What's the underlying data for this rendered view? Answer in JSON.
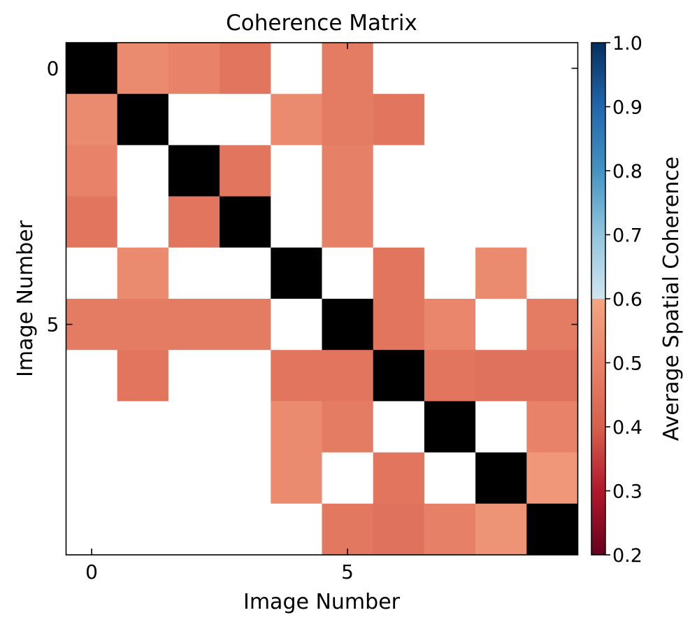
{
  "chart_data": {
    "type": "heatmap",
    "title": "Coherence Matrix",
    "xlabel": "Image Number",
    "ylabel": "Image Number",
    "x_ticks": [
      0,
      5
    ],
    "y_ticks": [
      0,
      5
    ],
    "colorbar": {
      "label": "Average Spatial Coherence",
      "min": 0.2,
      "max": 1.0,
      "ticks": [
        "0.2",
        "0.3",
        "0.4",
        "0.5",
        "0.6",
        "0.7",
        "0.8",
        "0.9",
        "1.0"
      ],
      "colormap": "RdBu",
      "colors": {
        "low": "#67001f",
        "mid_red": "#d6604d",
        "pale": "#f4a582",
        "pale_blue": "#d1e5f0",
        "mid_blue": "#4393c3",
        "high": "#053061"
      }
    },
    "diagonal_color": "#000000",
    "missing_color": "#ffffff",
    "matrix": [
      [
        null,
        0.62,
        0.6,
        0.56,
        null,
        0.58,
        null,
        null,
        null,
        null
      ],
      [
        0.62,
        null,
        null,
        null,
        0.62,
        0.58,
        0.56,
        null,
        null,
        null
      ],
      [
        0.6,
        null,
        null,
        0.56,
        null,
        0.59,
        null,
        null,
        null,
        null
      ],
      [
        0.56,
        null,
        0.56,
        null,
        null,
        0.59,
        null,
        null,
        null,
        null
      ],
      [
        null,
        0.62,
        null,
        null,
        null,
        null,
        0.56,
        null,
        0.62,
        null
      ],
      [
        0.58,
        0.58,
        0.58,
        0.58,
        null,
        null,
        0.56,
        0.61,
        null,
        0.58
      ],
      [
        null,
        0.56,
        null,
        null,
        0.56,
        0.56,
        null,
        0.56,
        0.55,
        0.55
      ],
      [
        null,
        null,
        null,
        null,
        0.62,
        0.58,
        null,
        null,
        null,
        0.6
      ],
      [
        null,
        null,
        null,
        null,
        0.62,
        null,
        0.56,
        null,
        null,
        0.66
      ],
      [
        null,
        null,
        null,
        null,
        null,
        0.57,
        0.55,
        0.59,
        0.65,
        null
      ]
    ]
  }
}
